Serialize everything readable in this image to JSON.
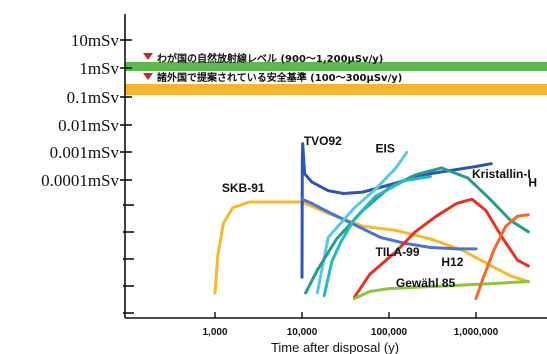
{
  "chart_data": {
    "type": "line",
    "xlabel": "Time after disposal (y)",
    "x_scale": "log",
    "x_ticks": [
      {
        "value": 1000,
        "label": "1,000"
      },
      {
        "value": 10000,
        "label": "10,000"
      },
      {
        "value": 100000,
        "label": "100,000"
      },
      {
        "value": 1000000,
        "label": "1,000,000"
      }
    ],
    "y_scale": "log",
    "y_ticks": [
      {
        "value": 10,
        "label": "10mSv"
      },
      {
        "value": 1,
        "label": "1mSv"
      },
      {
        "value": 0.1,
        "label": "0.1mSv"
      },
      {
        "value": 0.01,
        "label": "0.01mSv"
      },
      {
        "value": 0.001,
        "label": "0.001mSv"
      },
      {
        "value": 0.0001,
        "label": "0.0001mSv"
      }
    ],
    "y_minor_ticks": 5,
    "reference_bands": [
      {
        "label": "わが国の自然放射線レベル (900〜1,200μSv/y)",
        "color": "#5cb84a"
      },
      {
        "label": "諸外国で提案されている安全基準 (100〜300μSv/y)",
        "color": "#f5b531"
      }
    ],
    "marker_color": "#c62828",
    "series": [
      {
        "name": "SKB-91",
        "color": "#f5b82e",
        "points": [
          [
            1000,
            0.5
          ],
          [
            1080,
            3.2
          ],
          [
            1250,
            5.4
          ],
          [
            1600,
            6.5
          ],
          [
            2500,
            6.9
          ],
          [
            5000,
            6.9
          ],
          [
            10000,
            6.9
          ],
          [
            20000,
            6.1
          ],
          [
            50000,
            5.2
          ],
          [
            120000,
            4.9
          ],
          [
            300000,
            4.3
          ],
          [
            700000,
            3.5
          ],
          [
            1500000,
            2.4
          ],
          [
            2500000,
            1.7
          ],
          [
            4000000,
            1.3
          ]
        ]
      },
      {
        "name": "TVO92",
        "color": "#2f54b8",
        "points": [
          [
            10000,
            1.6
          ],
          [
            10080,
            9.6
          ],
          [
            10200,
            11.0
          ],
          [
            10700,
            8.9
          ],
          [
            13000,
            8.3
          ],
          [
            20000,
            7.7
          ],
          [
            30000,
            7.5
          ],
          [
            50000,
            7.6
          ],
          [
            100000,
            8.1
          ],
          [
            300000,
            8.9
          ],
          [
            1000000,
            9.4
          ],
          [
            1500000,
            9.6
          ]
        ]
      },
      {
        "name": "TVO92",
        "color": "#4a73d4",
        "points": [
          [
            10000,
            7.1
          ],
          [
            13000,
            6.8
          ],
          [
            20000,
            6.2
          ],
          [
            40000,
            5.3
          ],
          [
            80000,
            4.4
          ],
          [
            150000,
            4.0
          ],
          [
            300000,
            3.7
          ],
          [
            600000,
            3.6
          ],
          [
            1000000,
            3.6
          ]
        ]
      },
      {
        "name": "EIS",
        "color": "#5bc8dc",
        "points": [
          [
            15000,
            0.5
          ],
          [
            20000,
            4.4
          ],
          [
            40000,
            6.5
          ],
          [
            70000,
            7.8
          ],
          [
            120000,
            9.3
          ],
          [
            160000,
            10.4
          ]
        ]
      },
      {
        "name": "Kristallin-I",
        "color": "#2a9a8a",
        "points": [
          [
            11000,
            0.5
          ],
          [
            15000,
            2.1
          ],
          [
            25000,
            4.3
          ],
          [
            50000,
            6.3
          ],
          [
            100000,
            7.9
          ],
          [
            200000,
            8.8
          ],
          [
            400000,
            9.3
          ],
          [
            800000,
            8.6
          ],
          [
            1400000,
            7.2
          ],
          [
            2500000,
            5.6
          ],
          [
            4000000,
            4.8
          ]
        ]
      },
      {
        "name": "TILA-99",
        "color": "#26b8c6",
        "points": [
          [
            18000,
            0.3
          ],
          [
            22000,
            2.7
          ],
          [
            28000,
            4.1
          ],
          [
            40000,
            5.7
          ],
          [
            70000,
            7.3
          ],
          [
            150000,
            8.4
          ],
          [
            300000,
            8.7
          ]
        ]
      },
      {
        "name": "H12",
        "color": "#e53321",
        "points": [
          [
            40000,
            0.2
          ],
          [
            60000,
            1.8
          ],
          [
            120000,
            3.4
          ],
          [
            200000,
            4.8
          ],
          [
            350000,
            5.9
          ],
          [
            600000,
            6.8
          ],
          [
            900000,
            7.1
          ],
          [
            1300000,
            6.3
          ],
          [
            2000000,
            4.4
          ],
          [
            3000000,
            2.8
          ],
          [
            4000000,
            2.4
          ]
        ]
      },
      {
        "name": "Gewähl 85",
        "color": "#8cc63f",
        "points": [
          [
            40000,
            0.1
          ],
          [
            60000,
            0.6
          ],
          [
            100000,
            0.8
          ],
          [
            200000,
            0.9
          ],
          [
            500000,
            1.0
          ],
          [
            1000000,
            1.1
          ],
          [
            2000000,
            1.2
          ],
          [
            4000000,
            1.3
          ]
        ]
      },
      {
        "name": "H",
        "color": "#f06a2a",
        "points": [
          [
            1000000,
            0.1
          ],
          [
            1200000,
            1.5
          ],
          [
            1600000,
            3.5
          ],
          [
            2200000,
            5.2
          ],
          [
            3000000,
            5.9
          ],
          [
            4000000,
            6.0
          ]
        ]
      }
    ],
    "series_labels": [
      {
        "text": "SKB-91",
        "x": 1200,
        "y": 7.6
      },
      {
        "text": "TVO92",
        "x": 10500,
        "y": 10.9
      },
      {
        "text": "EIS",
        "x": 70000,
        "y": 10.4
      },
      {
        "text": "Kristallin-I",
        "x": 900000,
        "y": 8.6
      },
      {
        "text": "TILA-99",
        "x": 70000,
        "y": 3.1
      },
      {
        "text": "H12",
        "x": 400000,
        "y": 2.4
      },
      {
        "text": "Gewähl 85",
        "x": 120000,
        "y": 0.9
      },
      {
        "text": "H",
        "x": 4000000,
        "y": 8.0
      }
    ],
    "grid": false,
    "legend": "none"
  }
}
